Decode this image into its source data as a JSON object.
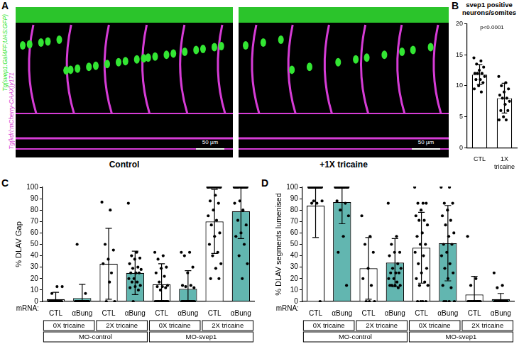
{
  "image_panel": {
    "panel": "A",
    "channels": [
      {
        "text": "Tg(svep1:Gal4FF;UAS:GFP)",
        "color": "#33e633"
      },
      {
        "text": "Tg(kdrl:mCherry-CAAX)y171",
        "color": "#d63cd6"
      }
    ],
    "images": [
      {
        "caption": "Control",
        "scale_bar": "50 µm"
      },
      {
        "caption": "+1X tricaine",
        "scale_bar": "50 µm"
      }
    ]
  },
  "chart_data": [
    {
      "panel": "B",
      "type": "bar",
      "title": "svep1 positive neurons/somites",
      "categories": [
        "CTL",
        "1X tricaine"
      ],
      "values": [
        11.8,
        8.0
      ],
      "errors": [
        1.6,
        2.4
      ],
      "points": [
        [
          14.5,
          14,
          13.5,
          13,
          12.5,
          12,
          12,
          12,
          11.5,
          11,
          11,
          10.5,
          10,
          9.5,
          9
        ],
        [
          11.5,
          10.5,
          10,
          9.5,
          9,
          8.5,
          8,
          8,
          7.5,
          7,
          6,
          6,
          5,
          4.5,
          4.5
        ]
      ],
      "colors": [
        "#ffffff",
        "#ffffff"
      ],
      "annotation": "p<0.0001",
      "ylim": [
        0,
        20
      ],
      "yticks": [
        0,
        5,
        10,
        15,
        20
      ],
      "grid": false
    },
    {
      "panel": "C",
      "type": "bar",
      "y_label": "% DLAV Gap",
      "x_label": "mRNA:",
      "categories": [
        "CTL",
        "αBung",
        "CTL",
        "αBung",
        "CTL",
        "αBung",
        "CTL",
        "αBung"
      ],
      "category_groups": [
        [
          "0X tricaine",
          "2X tricaine",
          "0X tricaine",
          "2X tricaine"
        ],
        [
          "MO-control",
          "MO-svep1"
        ]
      ],
      "values": [
        2,
        3,
        33,
        25,
        15,
        11,
        70,
        79
      ],
      "errors": [
        6,
        12,
        31,
        19,
        18,
        16,
        28,
        24
      ],
      "points": [
        [
          0,
          0,
          0,
          0,
          0,
          0,
          0,
          0,
          0,
          0,
          0,
          0,
          0,
          0,
          0,
          0,
          0,
          0,
          0,
          0,
          0,
          13,
          13,
          7,
          0
        ],
        [
          0,
          0,
          0,
          0,
          0,
          0,
          0,
          0,
          0,
          0,
          0,
          0,
          0,
          0,
          0,
          0,
          0,
          0,
          50,
          7,
          0,
          0
        ],
        [
          87,
          80,
          50,
          45,
          37,
          33,
          25,
          0,
          0,
          17
        ],
        [
          86,
          43,
          40,
          38,
          37,
          33,
          30,
          29,
          28,
          25,
          25,
          25,
          20,
          20,
          17,
          17,
          14,
          13,
          12,
          10,
          0
        ],
        [
          43,
          40,
          37,
          30,
          29,
          25,
          22,
          17,
          14,
          13,
          13,
          12,
          10,
          0,
          0,
          0,
          0,
          0,
          0,
          0,
          0,
          0,
          0,
          0,
          0,
          0
        ],
        [
          43,
          43,
          40,
          30,
          25,
          14,
          14,
          13,
          12,
          0,
          0,
          0,
          0,
          0,
          0,
          0,
          0,
          0,
          0,
          0,
          0,
          0,
          0
        ],
        [
          100,
          100,
          100,
          100,
          100,
          100,
          100,
          100,
          100,
          93,
          88,
          86,
          80,
          75,
          71,
          67,
          60,
          57,
          50,
          43,
          40,
          33,
          29,
          20,
          20
        ],
        [
          100,
          100,
          100,
          100,
          100,
          100,
          100,
          100,
          100,
          100,
          100,
          100,
          88,
          86,
          80,
          71,
          67,
          60,
          57,
          50,
          40,
          33,
          20
        ]
      ],
      "colors": [
        "#ffffff",
        "#62b6b0",
        "#ffffff",
        "#62b6b0",
        "#ffffff",
        "#62b6b0",
        "#ffffff",
        "#62b6b0"
      ],
      "ylim": [
        0,
        100
      ],
      "yticks": [
        0,
        10,
        20,
        30,
        40,
        50,
        60,
        70,
        80,
        90,
        100
      ],
      "grid": false
    },
    {
      "panel": "D",
      "type": "bar",
      "y_label": "% DLAV segments lumenised",
      "x_label": "mRNA:",
      "categories": [
        "CTL",
        "αBung",
        "CTL",
        "αBung",
        "CTL",
        "αBung",
        "CTL",
        "αBung"
      ],
      "category_groups": [
        [
          "0X tricaine",
          "2X tricaine",
          "0X tricaine",
          "2X tricaine"
        ],
        [
          "MO-control",
          "MO-svep1"
        ]
      ],
      "values": [
        84,
        87,
        29,
        34,
        47,
        51,
        6,
        2
      ],
      "errors": [
        28,
        19,
        27,
        21,
        31,
        33,
        16,
        5
      ],
      "points": [
        [
          100,
          100,
          100,
          100,
          100,
          100,
          100,
          100,
          100,
          100,
          100,
          100,
          100,
          100,
          100,
          100,
          100,
          100,
          100,
          100,
          88,
          88,
          86,
          86,
          0
        ],
        [
          100,
          100,
          100,
          100,
          100,
          100,
          100,
          100,
          100,
          100,
          100,
          100,
          100,
          100,
          100,
          100,
          100,
          100,
          88,
          86,
          80,
          75,
          57,
          43,
          14
        ],
        [
          75,
          57,
          50,
          43,
          29,
          20,
          14,
          0,
          0,
          0
        ],
        [
          86,
          57,
          50,
          43,
          43,
          40,
          33,
          29,
          29,
          25,
          25,
          25,
          20,
          20,
          17,
          14,
          14,
          14,
          14,
          12
        ],
        [
          100,
          86,
          86,
          86,
          80,
          75,
          71,
          71,
          67,
          60,
          57,
          50,
          50,
          43,
          40,
          33,
          29,
          25,
          20,
          17,
          14,
          14,
          0,
          0,
          0,
          0
        ],
        [
          100,
          100,
          86,
          86,
          80,
          75,
          71,
          67,
          60,
          57,
          50,
          50,
          43,
          40,
          33,
          29,
          25,
          20,
          14,
          12,
          0,
          0,
          0,
          0
        ],
        [
          57,
          20,
          14,
          0,
          0,
          0,
          0,
          0,
          0,
          0,
          0,
          0,
          0,
          0,
          0,
          0,
          0,
          0,
          0,
          0
        ],
        [
          25,
          14,
          12,
          0,
          0,
          0,
          0,
          0,
          0,
          0,
          0,
          0,
          0,
          0,
          0,
          0,
          0,
          0,
          0,
          0,
          0,
          0,
          0
        ]
      ],
      "colors": [
        "#ffffff",
        "#62b6b0",
        "#ffffff",
        "#62b6b0",
        "#ffffff",
        "#62b6b0",
        "#ffffff",
        "#62b6b0"
      ],
      "ylim": [
        0,
        100
      ],
      "yticks": [
        0,
        10,
        20,
        30,
        40,
        50,
        60,
        70,
        80,
        90,
        100
      ],
      "grid": false
    }
  ]
}
